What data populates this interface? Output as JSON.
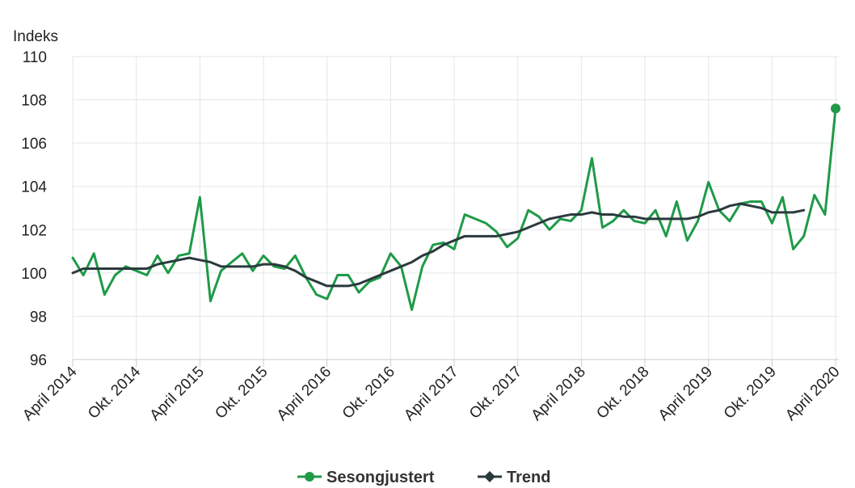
{
  "chart_data": {
    "type": "line",
    "ylabel": "Indeks",
    "ylim": [
      96,
      110
    ],
    "yticks": [
      "96",
      "98",
      "100",
      "102",
      "104",
      "106",
      "108",
      "110"
    ],
    "x_start": "April 2014",
    "xtick_labels": [
      "April 2014",
      "Okt. 2014",
      "April 2015",
      "Okt. 2015",
      "April 2016",
      "Okt. 2016",
      "April 2017",
      "Okt. 2017",
      "April 2018",
      "Okt. 2018",
      "April 2019",
      "Okt. 2019",
      "April 2020"
    ],
    "grid": true,
    "legend_position": "bottom",
    "series": [
      {
        "name": "Sesongjustert",
        "color": "#1f9a48",
        "marker": "circle",
        "values": [
          100.7,
          99.9,
          100.9,
          99.0,
          99.9,
          100.3,
          100.1,
          99.9,
          100.8,
          100.0,
          100.8,
          100.9,
          103.5,
          98.7,
          100.1,
          100.5,
          100.9,
          100.1,
          100.8,
          100.3,
          100.2,
          100.8,
          99.8,
          99.0,
          98.8,
          99.9,
          99.9,
          99.1,
          99.6,
          99.8,
          100.9,
          100.3,
          98.3,
          100.3,
          101.3,
          101.4,
          101.1,
          102.7,
          102.5,
          102.3,
          101.9,
          101.2,
          101.6,
          102.9,
          102.6,
          102.0,
          102.5,
          102.4,
          102.9,
          105.3,
          102.1,
          102.4,
          102.9,
          102.4,
          102.3,
          102.9,
          101.7,
          103.3,
          101.5,
          102.4,
          104.2,
          102.9,
          102.4,
          103.2,
          103.3,
          103.3,
          102.3,
          103.5,
          101.1,
          101.7,
          103.6,
          102.7,
          107.6
        ]
      },
      {
        "name": "Trend",
        "color": "#2b3a3d",
        "marker": "diamond",
        "values": [
          100.0,
          100.2,
          100.2,
          100.2,
          100.2,
          100.2,
          100.2,
          100.2,
          100.4,
          100.5,
          100.6,
          100.7,
          100.6,
          100.5,
          100.3,
          100.3,
          100.3,
          100.3,
          100.4,
          100.4,
          100.3,
          100.1,
          99.8,
          99.6,
          99.4,
          99.4,
          99.4,
          99.5,
          99.7,
          99.9,
          100.1,
          100.3,
          100.5,
          100.8,
          101.0,
          101.3,
          101.5,
          101.7,
          101.7,
          101.7,
          101.7,
          101.8,
          101.9,
          102.1,
          102.3,
          102.5,
          102.6,
          102.7,
          102.7,
          102.8,
          102.7,
          102.7,
          102.6,
          102.6,
          102.5,
          102.5,
          102.5,
          102.5,
          102.5,
          102.6,
          102.8,
          102.9,
          103.1,
          103.2,
          103.1,
          103.0,
          102.8,
          102.8,
          102.8,
          102.9,
          null,
          null,
          null
        ]
      }
    ]
  }
}
